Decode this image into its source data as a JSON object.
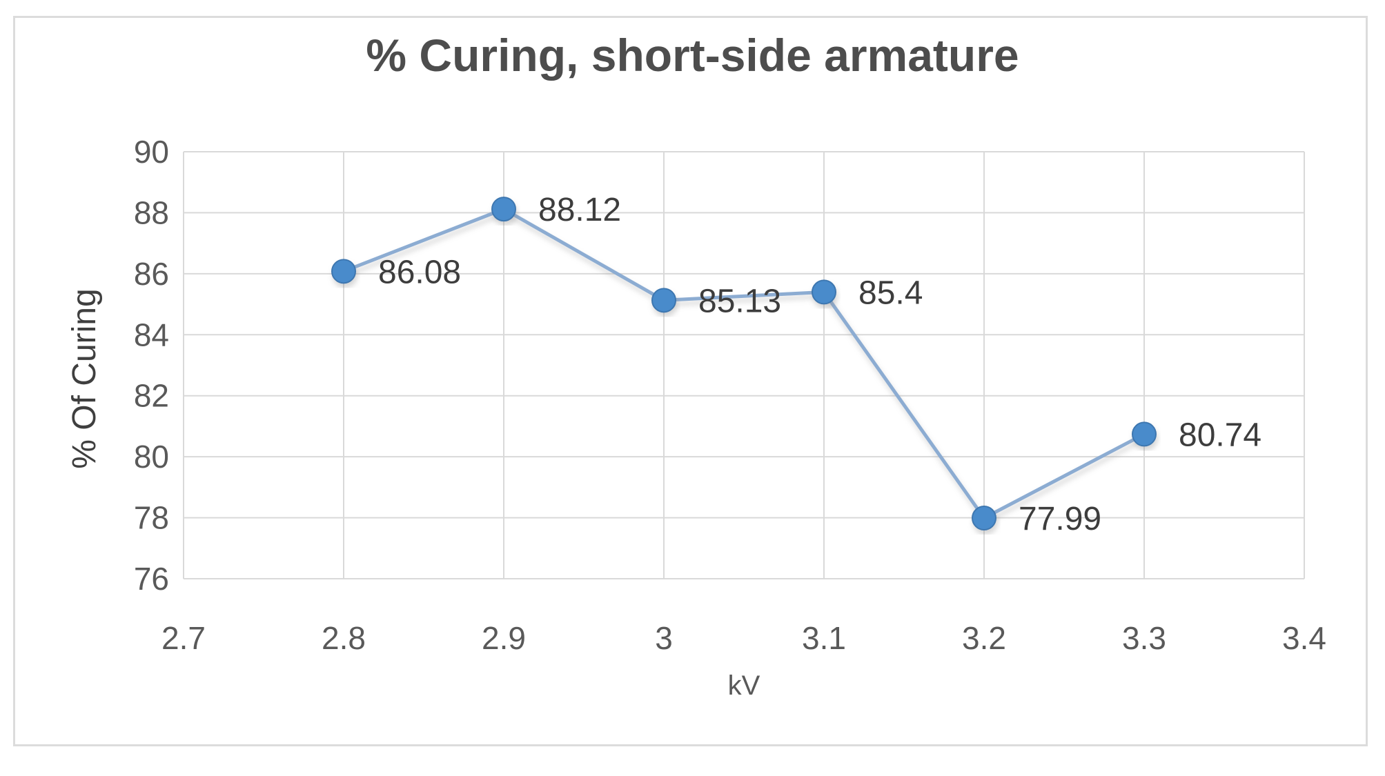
{
  "chart_data": {
    "type": "line",
    "title": "% Curing, short-side armature",
    "xlabel": "kV",
    "ylabel": "% Of Curing",
    "x": [
      2.8,
      2.9,
      3.0,
      3.1,
      3.2,
      3.3
    ],
    "series": [
      {
        "name": "% Curing",
        "values": [
          86.08,
          88.12,
          85.13,
          85.4,
          77.99,
          80.74
        ]
      }
    ],
    "data_labels": [
      "86.08",
      "88.12",
      "85.13",
      "85.4",
      "77.99",
      "80.74"
    ],
    "x_ticks": [
      {
        "label": "2.7",
        "value": 2.7
      },
      {
        "label": "2.8",
        "value": 2.8
      },
      {
        "label": "2.9",
        "value": 2.9
      },
      {
        "label": "3",
        "value": 3.0
      },
      {
        "label": "3.1",
        "value": 3.1
      },
      {
        "label": "3.2",
        "value": 3.2
      },
      {
        "label": "3.3",
        "value": 3.3
      },
      {
        "label": "3.4",
        "value": 3.4
      }
    ],
    "y_ticks": [
      {
        "label": "90",
        "value": 90
      },
      {
        "label": "88",
        "value": 88
      },
      {
        "label": "86",
        "value": 86
      },
      {
        "label": "84",
        "value": 84
      },
      {
        "label": "82",
        "value": 82
      },
      {
        "label": "80",
        "value": 80
      },
      {
        "label": "78",
        "value": 78
      },
      {
        "label": "76",
        "value": 76
      }
    ],
    "xlim": [
      2.7,
      3.4
    ],
    "ylim": [
      76,
      90
    ],
    "grid": true,
    "legend": false,
    "colors": {
      "line": "#8cacd2",
      "marker_fill": "#4a8bcb",
      "marker_edge": "#3e77b0",
      "gridline": "#d9d9d9",
      "axis_text": "#595959",
      "label_text": "#3d3d3d",
      "title_text": "#4d4d4d",
      "chart_border": "#dcdcdc",
      "background": "#ffffff"
    }
  }
}
